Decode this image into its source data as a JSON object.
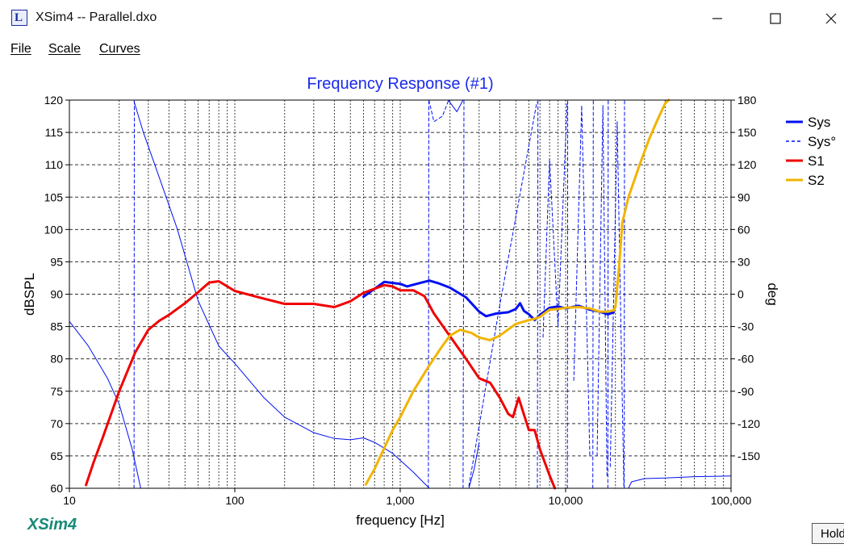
{
  "window": {
    "title": "XSim4 -- Parallel.dxo",
    "app_icon": "xsim-app-icon",
    "controls": [
      "minimize-icon",
      "maximize-icon",
      "close-icon"
    ]
  },
  "menu": {
    "file": "File",
    "scale": "Scale",
    "curves": "Curves"
  },
  "footer": {
    "logo": "XSim4",
    "hold_button": "Hold"
  },
  "chart_data": {
    "type": "line",
    "title": "Frequency Response (#1)",
    "xlabel": "frequency [Hz]",
    "ylabel": "dBSPL",
    "y2label": "deg",
    "xscale": "log",
    "xlim": [
      10,
      100000
    ],
    "ylim": [
      60,
      120
    ],
    "y2lim": [
      -180,
      180
    ],
    "x_ticks": [
      "10",
      "100",
      "1,000",
      "10,000",
      "100,000"
    ],
    "y_ticks": [
      "60",
      "65",
      "70",
      "75",
      "80",
      "85",
      "90",
      "95",
      "100",
      "105",
      "110",
      "115",
      "120"
    ],
    "y2_ticks": [
      "180",
      "150",
      "120",
      "90",
      "60",
      "30",
      "0",
      "-30",
      "-60",
      "-90",
      "-120",
      "-150"
    ],
    "grid": true,
    "legend_position": "right",
    "legend": [
      {
        "label": "Sys",
        "color": "#0010f0",
        "style": "solid"
      },
      {
        "label": "Sys°",
        "color": "#0010f0",
        "style": "dashed"
      },
      {
        "label": "S1",
        "color": "#f00000",
        "style": "solid"
      },
      {
        "label": "S2",
        "color": "#f0b400",
        "style": "solid"
      }
    ],
    "series": [
      {
        "name": "Sys",
        "color": "#0010f0",
        "axis": "left",
        "width": 3,
        "points": [
          [
            600,
            89.6
          ],
          [
            800,
            91.9
          ],
          [
            1000,
            91.6
          ],
          [
            1100,
            91.2
          ],
          [
            1300,
            91.7
          ],
          [
            1500,
            92.1
          ],
          [
            1700,
            91.7
          ],
          [
            2000,
            91.0
          ],
          [
            2500,
            89.5
          ],
          [
            3000,
            87.3
          ],
          [
            3300,
            86.6
          ],
          [
            3800,
            87.0
          ],
          [
            4500,
            87.2
          ],
          [
            5000,
            87.7
          ],
          [
            5300,
            88.6
          ],
          [
            5600,
            87.4
          ],
          [
            6000,
            86.9
          ],
          [
            6500,
            86.0
          ],
          [
            7000,
            86.8
          ],
          [
            8000,
            87.9
          ],
          [
            9000,
            88.1
          ],
          [
            10000,
            87.8
          ],
          [
            12000,
            88.2
          ],
          [
            14000,
            87.6
          ],
          [
            16000,
            87.3
          ],
          [
            18000,
            86.9
          ],
          [
            19500,
            87.2
          ]
        ]
      },
      {
        "name": "Sys°",
        "color": "#0010f0",
        "axis": "right",
        "width": 1,
        "dashed": true,
        "segments": [
          [
            [
              24.6,
              -180
            ],
            [
              24.7,
              180
            ]
          ],
          [
            [
              1480,
              -180
            ],
            [
              1490,
              180
            ]
          ],
          [
            [
              1490,
              180
            ],
            [
              1600,
              160
            ],
            [
              1800,
              165
            ],
            [
              1950,
              179
            ]
          ],
          [
            [
              2400,
              -180
            ],
            [
              2430,
              180
            ]
          ],
          [
            [
              2600,
              -178
            ],
            [
              4000,
              -10
            ],
            [
              6700,
              178
            ]
          ],
          [
            [
              6750,
              -180
            ],
            [
              6800,
              180
            ]
          ],
          [
            [
              7300,
              -40
            ],
            [
              8000,
              125
            ],
            [
              9000,
              -30
            ],
            [
              10200,
              177
            ]
          ],
          [
            [
              10250,
              -180
            ],
            [
              10300,
              180
            ]
          ],
          [
            [
              11200,
              -80
            ],
            [
              12500,
              175
            ],
            [
              14000,
              -150
            ]
          ],
          [
            [
              14600,
              -180
            ],
            [
              14700,
              180
            ]
          ],
          [
            [
              15500,
              -150
            ],
            [
              16800,
              175
            ],
            [
              17800,
              -170
            ]
          ],
          [
            [
              18000,
              -180
            ],
            [
              18100,
              180
            ]
          ],
          [
            [
              18600,
              -160
            ],
            [
              20500,
              160
            ],
            [
              22500,
              -180
            ]
          ],
          [
            [
              22600,
              -180
            ],
            [
              22700,
              180
            ]
          ]
        ]
      },
      {
        "name": "Sys°",
        "color": "#0010f0",
        "axis": "left",
        "width": 1,
        "dashed": false,
        "segments": [
          [
            [
              10,
              85.8
            ],
            [
              13,
              82
            ],
            [
              17,
              77
            ],
            [
              20,
              73
            ],
            [
              24,
              66
            ],
            [
              27,
              60
            ]
          ],
          [
            [
              24.6,
              119.8
            ],
            [
              28,
              115
            ],
            [
              35,
              108
            ],
            [
              45,
              100
            ],
            [
              60,
              89
            ],
            [
              80,
              82
            ],
            [
              100,
              79.3
            ],
            [
              150,
              74
            ],
            [
              200,
              71
            ],
            [
              300,
              68.6
            ],
            [
              400,
              67.7
            ],
            [
              500,
              67.5
            ],
            [
              600,
              67.8
            ],
            [
              700,
              67.1
            ],
            [
              900,
              65.4
            ],
            [
              1200,
              62.5
            ],
            [
              1500,
              60
            ]
          ],
          [
            [
              1950,
              120
            ],
            [
              2200,
              118.2
            ],
            [
              2400,
              120
            ]
          ],
          [
            [
              2600,
              60
            ],
            [
              2800,
              63
            ],
            [
              3000,
              67
            ]
          ],
          [
            [
              24000,
              60
            ],
            [
              25000,
              61
            ],
            [
              30000,
              61.5
            ],
            [
              40000,
              61.6
            ],
            [
              60000,
              61.8
            ],
            [
              100000,
              61.9
            ]
          ]
        ]
      },
      {
        "name": "S1",
        "color": "#f00000",
        "axis": "left",
        "width": 3,
        "points": [
          [
            12.6,
            60.5
          ],
          [
            14,
            64
          ],
          [
            16,
            68
          ],
          [
            20,
            75
          ],
          [
            25,
            81
          ],
          [
            30,
            84.5
          ],
          [
            35,
            85.9
          ],
          [
            40,
            86.8
          ],
          [
            50,
            88.6
          ],
          [
            60,
            90.3
          ],
          [
            70,
            91.8
          ],
          [
            80,
            92.0
          ],
          [
            100,
            90.5
          ],
          [
            150,
            89.3
          ],
          [
            200,
            88.5
          ],
          [
            300,
            88.5
          ],
          [
            400,
            88.0
          ],
          [
            500,
            88.9
          ],
          [
            600,
            90.2
          ],
          [
            800,
            91.4
          ],
          [
            900,
            91.2
          ],
          [
            1000,
            90.6
          ],
          [
            1200,
            90.6
          ],
          [
            1400,
            89.7
          ],
          [
            1600,
            87.0
          ],
          [
            2000,
            83.5
          ],
          [
            2500,
            80.0
          ],
          [
            3000,
            77.0
          ],
          [
            3500,
            76.3
          ],
          [
            4000,
            74.0
          ],
          [
            4500,
            71.5
          ],
          [
            4800,
            71.0
          ],
          [
            5200,
            74.0
          ],
          [
            5500,
            72.0
          ],
          [
            6000,
            69.0
          ],
          [
            6500,
            69.0
          ],
          [
            7000,
            66.0
          ],
          [
            8000,
            62.0
          ],
          [
            8600,
            60.0
          ]
        ]
      },
      {
        "name": "S2",
        "color": "#f0b400",
        "axis": "left",
        "width": 3,
        "points": [
          [
            620,
            60.6
          ],
          [
            700,
            63
          ],
          [
            900,
            69
          ],
          [
            1000,
            71
          ],
          [
            1200,
            75
          ],
          [
            1500,
            79
          ],
          [
            1800,
            82
          ],
          [
            2000,
            83.6
          ],
          [
            2300,
            84.5
          ],
          [
            2700,
            84
          ],
          [
            3000,
            83.3
          ],
          [
            3500,
            82.9
          ],
          [
            4000,
            83.6
          ],
          [
            5000,
            85.4
          ],
          [
            6000,
            86.0
          ],
          [
            6500,
            86.2
          ],
          [
            7000,
            86.5
          ],
          [
            8000,
            87.6
          ],
          [
            9000,
            87.7
          ],
          [
            10000,
            87.9
          ],
          [
            12000,
            88.0
          ],
          [
            14000,
            87.8
          ],
          [
            16000,
            87.3
          ],
          [
            18000,
            87.3
          ],
          [
            19500,
            87.5
          ],
          [
            20000,
            88
          ],
          [
            21000,
            94
          ],
          [
            22000,
            101
          ],
          [
            24000,
            105
          ],
          [
            28000,
            110
          ],
          [
            32000,
            114
          ],
          [
            36000,
            117
          ],
          [
            40000,
            119.5
          ],
          [
            42000,
            120
          ]
        ]
      }
    ]
  }
}
